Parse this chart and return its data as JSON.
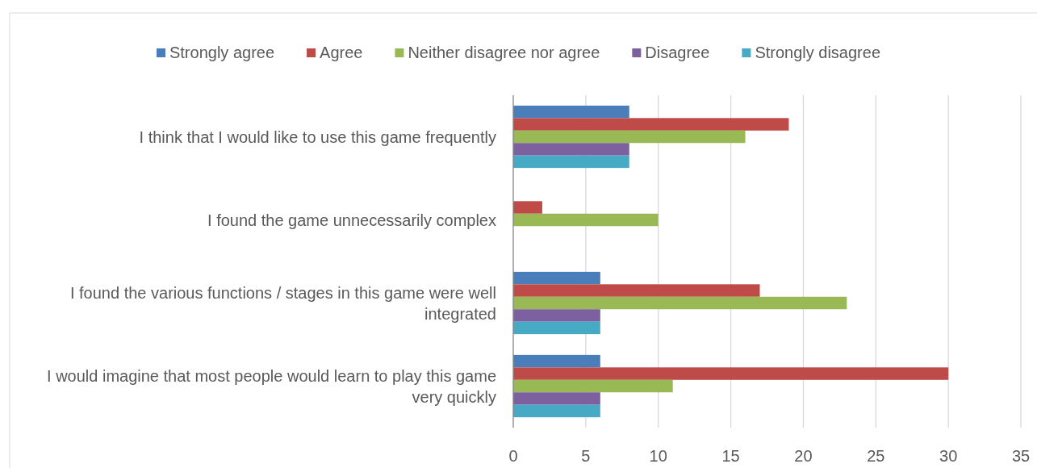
{
  "chart_data": {
    "type": "bar",
    "orientation": "horizontal",
    "categories": [
      "I think that I would like to use this game frequently",
      "I found the game unnecessarily complex",
      "I found the various functions / stages in this game were well integrated",
      "I would imagine that most people would learn to play this game very quickly"
    ],
    "series": [
      {
        "name": "Strongly agree",
        "color": "#4a7ebb",
        "values": [
          8,
          0,
          6,
          6
        ]
      },
      {
        "name": "Agree",
        "color": "#be4b48",
        "values": [
          19,
          2,
          17,
          30
        ]
      },
      {
        "name": "Neither disagree nor agree",
        "color": "#98b954",
        "values": [
          16,
          10,
          23,
          11
        ]
      },
      {
        "name": "Disagree",
        "color": "#7d60a0",
        "values": [
          8,
          0,
          6,
          6
        ]
      },
      {
        "name": "Strongly disagree",
        "color": "#46aac5",
        "values": [
          8,
          0,
          6,
          6
        ]
      }
    ],
    "xlim": [
      0,
      35
    ],
    "xticks": [
      0,
      5,
      10,
      15,
      20,
      25,
      30,
      35
    ],
    "grid": "x",
    "legend": "top"
  }
}
